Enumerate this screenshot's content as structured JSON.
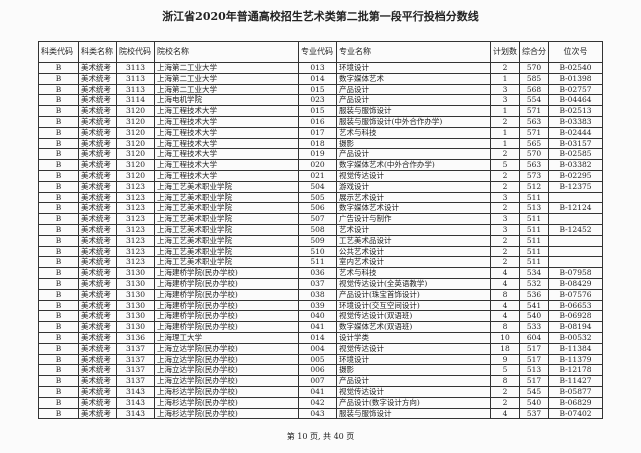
{
  "title": "浙江省2020年普通高校招生艺术类第二批第一段平行投档分数线",
  "headers": [
    "科类代码",
    "科类名称",
    "院校代码",
    "院校名称",
    "专业代码",
    "专业名称",
    "计划数",
    "综合分",
    "位次号"
  ],
  "rows": [
    [
      "B",
      "美术统考",
      "3113",
      "上海第二工业大学",
      "013",
      "环境设计",
      "2",
      "570",
      "B-02540"
    ],
    [
      "B",
      "美术统考",
      "3113",
      "上海第二工业大学",
      "014",
      "数字媒体艺术",
      "1",
      "585",
      "B-01398"
    ],
    [
      "B",
      "美术统考",
      "3113",
      "上海第二工业大学",
      "015",
      "产品设计",
      "3",
      "568",
      "B-02757"
    ],
    [
      "B",
      "美术统考",
      "3114",
      "上海电机学院",
      "023",
      "产品设计",
      "3",
      "554",
      "B-04464"
    ],
    [
      "B",
      "美术统考",
      "3120",
      "上海工程技术大学",
      "015",
      "服装与服饰设计",
      "1",
      "571",
      "B-02513"
    ],
    [
      "B",
      "美术统考",
      "3120",
      "上海工程技术大学",
      "016",
      "服装与服饰设计(中外合作办学)",
      "2",
      "563",
      "B-03383"
    ],
    [
      "B",
      "美术统考",
      "3120",
      "上海工程技术大学",
      "017",
      "艺术与科技",
      "1",
      "571",
      "B-02444"
    ],
    [
      "B",
      "美术统考",
      "3120",
      "上海工程技术大学",
      "018",
      "摄影",
      "1",
      "565",
      "B-03157"
    ],
    [
      "B",
      "美术统考",
      "3120",
      "上海工程技术大学",
      "019",
      "产品设计",
      "2",
      "570",
      "B-02585"
    ],
    [
      "B",
      "美术统考",
      "3120",
      "上海工程技术大学",
      "020",
      "数字媒体艺术(中外合作办学)",
      "5",
      "563",
      "B-03382"
    ],
    [
      "B",
      "美术统考",
      "3120",
      "上海工程技术大学",
      "021",
      "视觉传达设计",
      "2",
      "573",
      "B-02295"
    ],
    [
      "B",
      "美术统考",
      "3123",
      "上海工艺美术职业学院",
      "504",
      "游戏设计",
      "2",
      "512",
      "B-12375"
    ],
    [
      "B",
      "美术统考",
      "3123",
      "上海工艺美术职业学院",
      "505",
      "展示艺术设计",
      "3",
      "511",
      ""
    ],
    [
      "B",
      "美术统考",
      "3123",
      "上海工艺美术职业学院",
      "506",
      "数字媒体艺术设计",
      "2",
      "513",
      "B-12124"
    ],
    [
      "B",
      "美术统考",
      "3123",
      "上海工艺美术职业学院",
      "507",
      "广告设计与制作",
      "3",
      "511",
      ""
    ],
    [
      "B",
      "美术统考",
      "3123",
      "上海工艺美术职业学院",
      "508",
      "艺术设计",
      "3",
      "511",
      "B-12452"
    ],
    [
      "B",
      "美术统考",
      "3123",
      "上海工艺美术职业学院",
      "509",
      "工艺美术品设计",
      "2",
      "511",
      ""
    ],
    [
      "B",
      "美术统考",
      "3123",
      "上海工艺美术职业学院",
      "510",
      "公共艺术设计",
      "2",
      "511",
      ""
    ],
    [
      "B",
      "美术统考",
      "3123",
      "上海工艺美术职业学院",
      "511",
      "室内艺术设计",
      "2",
      "511",
      ""
    ],
    [
      "B",
      "美术统考",
      "3130",
      "上海建桥学院(民办学校)",
      "036",
      "艺术与科技",
      "4",
      "534",
      "B-07958"
    ],
    [
      "B",
      "美术统考",
      "3130",
      "上海建桥学院(民办学校)",
      "037",
      "视觉传达设计(全英语教学)",
      "4",
      "532",
      "B-08429"
    ],
    [
      "B",
      "美术统考",
      "3130",
      "上海建桥学院(民办学校)",
      "038",
      "产品设计(珠宝首饰设计)",
      "8",
      "536",
      "B-07576"
    ],
    [
      "B",
      "美术统考",
      "3130",
      "上海建桥学院(民办学校)",
      "039",
      "环境设计(交互空间设计)",
      "4",
      "541",
      "B-06653"
    ],
    [
      "B",
      "美术统考",
      "3130",
      "上海建桥学院(民办学校)",
      "040",
      "视觉传达设计(双语班)",
      "4",
      "540",
      "B-06928"
    ],
    [
      "B",
      "美术统考",
      "3130",
      "上海建桥学院(民办学校)",
      "041",
      "数字媒体艺术(双语班)",
      "8",
      "533",
      "B-08194"
    ],
    [
      "B",
      "美术统考",
      "3136",
      "上海理工大学",
      "014",
      "设计学类",
      "10",
      "604",
      "B-00532"
    ],
    [
      "B",
      "美术统考",
      "3137",
      "上海立达学院(民办学校)",
      "004",
      "视觉传达设计",
      "18",
      "517",
      "B-11384"
    ],
    [
      "B",
      "美术统考",
      "3137",
      "上海立达学院(民办学校)",
      "005",
      "环境设计",
      "9",
      "517",
      "B-11379"
    ],
    [
      "B",
      "美术统考",
      "3137",
      "上海立达学院(民办学校)",
      "006",
      "摄影",
      "5",
      "513",
      "B-12178"
    ],
    [
      "B",
      "美术统考",
      "3137",
      "上海立达学院(民办学校)",
      "007",
      "产品设计",
      "8",
      "517",
      "B-11427"
    ],
    [
      "B",
      "美术统考",
      "3143",
      "上海杉达学院(民办学校)",
      "041",
      "视觉传达设计",
      "2",
      "545",
      "B-05877"
    ],
    [
      "B",
      "美术统考",
      "3143",
      "上海杉达学院(民办学校)",
      "042",
      "产品设计(数字设计方向)",
      "2",
      "540",
      "B-06829"
    ],
    [
      "B",
      "美术统考",
      "3143",
      "上海杉达学院(民办学校)",
      "043",
      "服装与服饰设计",
      "4",
      "537",
      "B-07402"
    ]
  ],
  "footer": "第 10 页, 共 40 页"
}
